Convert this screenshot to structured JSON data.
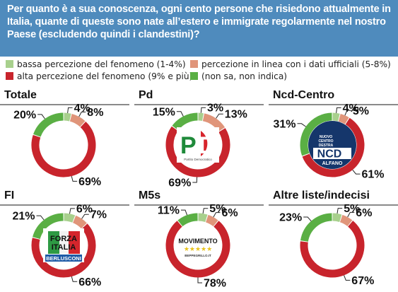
{
  "header": {
    "title": "Per quanto è a sua conoscenza, ogni cento persone che risiedono attualmente in Italia, quante di queste sono nate all’estero e immigrate regolarmente nel nostro Paese (escludendo quindi i clandestini)?"
  },
  "legend": [
    {
      "label": "bassa percezione del fenomeno (1-4%)",
      "color": "#a8d08d"
    },
    {
      "label": "percezione in linea con i dati ufficiali (5-8%)",
      "color": "#e0957a"
    },
    {
      "label": "alta percezione del fenomeno (9% e più)",
      "color": "#c8242c"
    },
    {
      "label": "(non sa, non indica)",
      "color": "#5aaf44"
    }
  ],
  "chart_data": [
    {
      "type": "pie",
      "title": "Totale",
      "categories": [
        "bassa percezione del fenomeno (1-4%)",
        "percezione in linea con i dati ufficiali (5-8%)",
        "alta percezione del fenomeno (9% e più)",
        "(non sa, non indica)"
      ],
      "values": [
        4,
        8,
        69,
        20
      ],
      "labels": [
        "4%",
        "8%",
        "69%",
        "20%"
      ],
      "logo": ""
    },
    {
      "type": "pie",
      "title": "Pd",
      "categories": [
        "bassa percezione del fenomeno (1-4%)",
        "percezione in linea con i dati ufficiali (5-8%)",
        "alta percezione del fenomeno (9% e più)",
        "(non sa, non indica)"
      ],
      "values": [
        3,
        13,
        69,
        15
      ],
      "labels": [
        "3%",
        "13%",
        "69%",
        "15%"
      ],
      "logo": "pd"
    },
    {
      "type": "pie",
      "title": "Ncd-Centro",
      "categories": [
        "bassa percezione del fenomeno (1-4%)",
        "percezione in linea con i dati ufficiali (5-8%)",
        "alta percezione del fenomeno (9% e più)",
        "(non sa, non indica)"
      ],
      "values": [
        4,
        5,
        61,
        31
      ],
      "labels": [
        "4%",
        "5%",
        "61%",
        "31%"
      ],
      "logo": "ncd"
    },
    {
      "type": "pie",
      "title": "FI",
      "categories": [
        "bassa percezione del fenomeno (1-4%)",
        "percezione in linea con i dati ufficiali (5-8%)",
        "alta percezione del fenomeno (9% e più)",
        "(non sa, non indica)"
      ],
      "values": [
        6,
        7,
        66,
        21
      ],
      "labels": [
        "6%",
        "7%",
        "66%",
        "21%"
      ],
      "logo": "fi"
    },
    {
      "type": "pie",
      "title": "M5s",
      "categories": [
        "bassa percezione del fenomeno (1-4%)",
        "percezione in linea con i dati ufficiali (5-8%)",
        "alta percezione del fenomeno (9% e più)",
        "(non sa, non indica)"
      ],
      "values": [
        5,
        6,
        78,
        11
      ],
      "labels": [
        "5%",
        "6%",
        "78%",
        "11%"
      ],
      "logo": "m5s"
    },
    {
      "type": "pie",
      "title": "Altre liste/indecisi",
      "categories": [
        "bassa percezione del fenomeno (1-4%)",
        "percezione in linea con i dati ufficiali (5-8%)",
        "alta percezione del fenomeno (9% e più)",
        "(non sa, non indica)"
      ],
      "values": [
        5,
        6,
        67,
        23
      ],
      "labels": [
        "5%",
        "6%",
        "67%",
        "23%"
      ],
      "logo": ""
    }
  ],
  "logos": {
    "pd": {
      "text": "PD",
      "caption": "Partito Democratico"
    },
    "ncd": {
      "line1": "NUOVO",
      "line2": "CENTRO",
      "line3": "DESTRA",
      "text": "NCD",
      "caption": "ALFANO"
    },
    "fi": {
      "line1": "FORZA",
      "line2": "ITALIA",
      "caption": "BERLUSCONI"
    },
    "m5s": {
      "text": "MOVIMENTO",
      "stars": "★★★★★",
      "caption": "BEPPEGRILLO.IT"
    }
  }
}
